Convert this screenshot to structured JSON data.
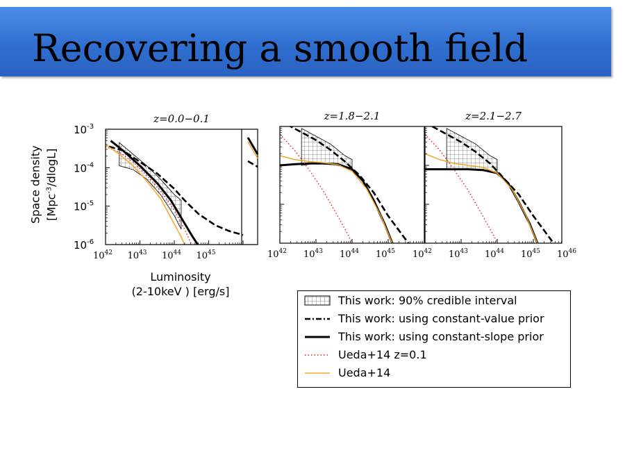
{
  "slide": {
    "title": "Recovering a smooth field"
  },
  "chart_data": {
    "type": "line",
    "xscale": "log",
    "yscale": "log",
    "xlim": [
      1e+42,
      1e+46
    ],
    "ylim": [
      1e-06,
      0.001
    ],
    "ylabel_line1": "Space density",
    "ylabel_line2_pre": "[Mpc",
    "ylabel_line2_sup": "-3",
    "ylabel_line2_post": "/dlogL]",
    "xlabel_line1": "Luminosity",
    "xlabel_line2": "(2-10keV ) [erg/s]",
    "y_tick_labels": [
      {
        "value": 0.001,
        "base": "10",
        "exp": "-3"
      },
      {
        "value": 0.0001,
        "base": "10",
        "exp": "-4"
      },
      {
        "value": 1e-05,
        "base": "10",
        "exp": "-5"
      },
      {
        "value": 1e-06,
        "base": "10",
        "exp": "-6"
      }
    ],
    "panels": [
      {
        "title": "z=0.0−0.1",
        "x_tick_labels": [
          {
            "value": 1e+42,
            "base": "10",
            "exp": "42"
          },
          {
            "value": 1e+43,
            "base": "10",
            "exp": "43"
          },
          {
            "value": 1e+44,
            "base": "10",
            "exp": "44"
          },
          {
            "value": 1e+45,
            "base": "10",
            "exp": "45"
          }
        ],
        "band": [
          [
            42.4,
            -3.35,
            -3.95
          ],
          [
            42.8,
            -3.65,
            -4.05
          ],
          [
            43.2,
            -3.95,
            -4.3
          ],
          [
            43.6,
            -4.3,
            -4.7
          ],
          [
            44.0,
            -4.7,
            -5.25
          ],
          [
            44.2,
            -4.85,
            -5.6
          ]
        ],
        "series": [
          {
            "key": "constant_value",
            "x": [
              42.1,
              42.5,
              43.0,
              43.5,
              44.0,
              44.3,
              44.7,
              45.2,
              45.6,
              46.0
            ],
            "y": [
              -3.45,
              -3.55,
              -3.85,
              -4.15,
              -4.55,
              -4.85,
              -5.2,
              -5.5,
              -5.65,
              -5.75
            ]
          },
          {
            "key": "constant_slope",
            "x": [
              42.15,
              42.5,
              43.0,
              43.5,
              43.9,
              44.2,
              44.5,
              44.9
            ],
            "y": [
              -3.3,
              -3.55,
              -3.95,
              -4.4,
              -4.85,
              -5.3,
              -5.75,
              -6.3
            ]
          },
          {
            "key": "ueda_z01",
            "x": [
              42.0,
              42.4,
              42.8,
              43.2,
              43.6,
              44.0,
              44.3,
              44.6
            ],
            "y": [
              -3.45,
              -3.6,
              -3.85,
              -4.2,
              -4.6,
              -5.1,
              -5.6,
              -6.2
            ]
          },
          {
            "key": "ueda14",
            "x": [
              42.0,
              42.4,
              42.8,
              43.2,
              43.6,
              43.9,
              44.2,
              44.4
            ],
            "y": [
              -3.4,
              -3.65,
              -3.95,
              -4.35,
              -4.8,
              -5.3,
              -5.8,
              -6.2
            ]
          }
        ]
      },
      {
        "title": "z=1.8−2.1",
        "x_tick_labels": [
          {
            "value": 1e+42,
            "base": "10",
            "exp": "42"
          },
          {
            "value": 1e+43,
            "base": "10",
            "exp": "43"
          },
          {
            "value": 1e+44,
            "base": "10",
            "exp": "44"
          },
          {
            "value": 1e+45,
            "base": "10",
            "exp": "45"
          }
        ],
        "band": [
          [
            42.6,
            -3.05,
            -4.0
          ],
          [
            43.0,
            -3.25,
            -3.95
          ],
          [
            43.4,
            -3.45,
            -3.95
          ],
          [
            43.8,
            -3.75,
            -4.05
          ],
          [
            44.0,
            -3.85,
            -4.1
          ]
        ],
        "series": [
          {
            "key": "constant_value",
            "x": [
              42.2,
              42.6,
              43.0,
              43.4,
              43.8,
              44.2,
              44.6,
              45.0,
              45.4,
              45.8
            ],
            "y": [
              -2.95,
              -3.15,
              -3.35,
              -3.6,
              -3.9,
              -4.25,
              -4.7,
              -5.3,
              -5.8,
              -6.3
            ]
          },
          {
            "key": "constant_slope",
            "x": [
              42.0,
              42.4,
              42.8,
              43.2,
              43.6,
              44.0,
              44.3,
              44.6,
              44.9,
              45.2
            ],
            "y": [
              -4.0,
              -3.97,
              -3.95,
              -3.95,
              -3.97,
              -4.1,
              -4.4,
              -4.9,
              -5.5,
              -6.2
            ]
          },
          {
            "key": "ueda_z01",
            "x": [
              42.0,
              42.4,
              42.8,
              43.2,
              43.6,
              43.9,
              44.1
            ],
            "y": [
              -3.2,
              -3.6,
              -4.1,
              -4.65,
              -5.3,
              -5.8,
              -6.2
            ]
          },
          {
            "key": "ueda14",
            "x": [
              42.0,
              42.4,
              42.8,
              43.2,
              43.6,
              44.0,
              44.4,
              44.8,
              45.2
            ],
            "y": [
              -3.75,
              -3.85,
              -3.9,
              -3.93,
              -3.98,
              -4.15,
              -4.6,
              -5.3,
              -6.2
            ]
          }
        ]
      },
      {
        "title": "z=2.1−2.7",
        "x_tick_labels": [
          {
            "value": 1e+42,
            "base": "10",
            "exp": "42"
          },
          {
            "value": 1e+43,
            "base": "10",
            "exp": "43"
          },
          {
            "value": 1e+44,
            "base": "10",
            "exp": "44"
          },
          {
            "value": 1e+45,
            "base": "10",
            "exp": "45"
          },
          {
            "value": 1e+46,
            "base": "10",
            "exp": "46"
          }
        ],
        "band": [
          [
            42.6,
            -3.05,
            -4.1
          ],
          [
            43.0,
            -3.25,
            -4.1
          ],
          [
            43.4,
            -3.45,
            -4.1
          ],
          [
            43.8,
            -3.75,
            -4.15
          ],
          [
            44.0,
            -3.85,
            -4.2
          ]
        ],
        "series": [
          {
            "key": "constant_value",
            "x": [
              42.2,
              42.6,
              43.0,
              43.4,
              43.8,
              44.2,
              44.6,
              45.0,
              45.4,
              45.8
            ],
            "y": [
              -3.0,
              -3.2,
              -3.4,
              -3.65,
              -3.95,
              -4.35,
              -4.75,
              -5.3,
              -5.8,
              -6.3
            ]
          },
          {
            "key": "constant_slope",
            "x": [
              42.0,
              42.4,
              42.8,
              43.2,
              43.6,
              44.0,
              44.3,
              44.6,
              44.9,
              45.2
            ],
            "y": [
              -4.1,
              -4.1,
              -4.1,
              -4.1,
              -4.12,
              -4.2,
              -4.45,
              -4.95,
              -5.5,
              -6.2
            ]
          },
          {
            "key": "ueda_z01",
            "x": [
              42.0,
              42.4,
              42.8,
              43.2,
              43.6,
              43.9,
              44.1
            ],
            "y": [
              -3.2,
              -3.6,
              -4.1,
              -4.65,
              -5.3,
              -5.8,
              -6.2
            ]
          },
          {
            "key": "ueda14",
            "x": [
              42.0,
              42.4,
              42.8,
              43.2,
              43.6,
              44.0,
              44.4,
              44.8,
              45.2
            ],
            "y": [
              -3.7,
              -3.85,
              -3.95,
              -4.0,
              -4.05,
              -4.2,
              -4.6,
              -5.3,
              -6.2
            ]
          }
        ]
      }
    ],
    "legend": [
      {
        "key": "band",
        "label": "This work: 90% credible interval"
      },
      {
        "key": "constant_value",
        "label": "This work: using constant-value prior"
      },
      {
        "key": "constant_slope",
        "label": "This work: using constant-slope prior"
      },
      {
        "key": "ueda_z01",
        "label": "Ueda+14 z=0.1"
      },
      {
        "key": "ueda14",
        "label": "Ueda+14"
      }
    ],
    "colors": {
      "this_work": "#000000",
      "ueda_z01": "#e41a1c",
      "ueda14": "#f5a623"
    }
  }
}
